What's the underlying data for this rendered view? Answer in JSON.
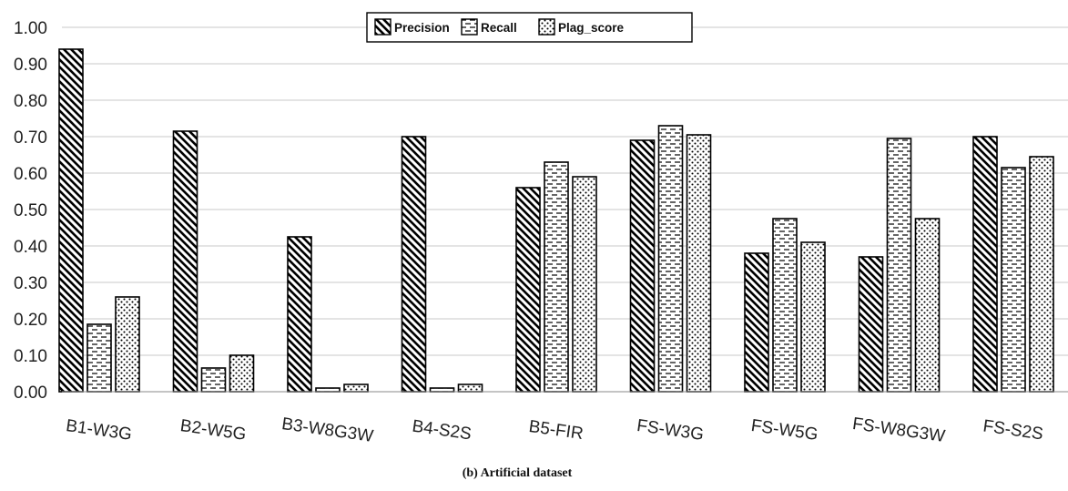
{
  "chart_data": {
    "type": "bar",
    "title": "",
    "caption": "(b) Artificial dataset",
    "xlabel": "",
    "ylabel": "",
    "ylim": [
      0,
      1
    ],
    "yticks": [
      "0.00",
      "0.10",
      "0.20",
      "0.30",
      "0.40",
      "0.50",
      "0.60",
      "0.70",
      "0.80",
      "0.90",
      "1.00"
    ],
    "grid": true,
    "legend_position": "top-center",
    "categories": [
      "B1-W3G",
      "B2-W5G",
      "B3-W8G3W",
      "B4-S2S",
      "B5-FIR",
      "FS-W3G",
      "FS-W5G",
      "FS-W8G3W",
      "FS-S2S"
    ],
    "series": [
      {
        "name": "Precision",
        "pattern": "diagonal-hatch",
        "values": [
          0.94,
          0.715,
          0.425,
          0.7,
          0.56,
          0.69,
          0.38,
          0.37,
          0.7
        ]
      },
      {
        "name": "Recall",
        "pattern": "dashed-lines",
        "values": [
          0.185,
          0.065,
          0.01,
          0.01,
          0.63,
          0.73,
          0.475,
          0.695,
          0.615
        ]
      },
      {
        "name": "Plag_score",
        "pattern": "dots",
        "values": [
          0.26,
          0.1,
          0.02,
          0.02,
          0.59,
          0.705,
          0.41,
          0.475,
          0.645
        ]
      }
    ]
  }
}
